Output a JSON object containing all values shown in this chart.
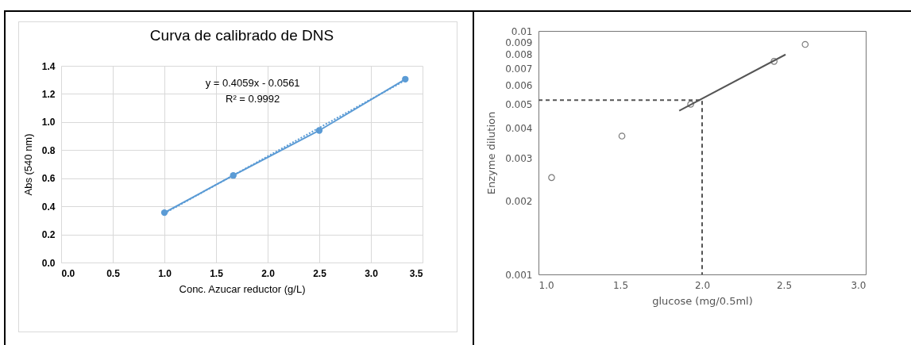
{
  "chart_data": [
    {
      "type": "line",
      "title": "Curva de calibrado de DNS",
      "xlabel": "Conc. Azucar reductor (g/L)",
      "ylabel": "Abs (540 nm)",
      "series": [
        {
          "x": [
            1.0,
            1.667,
            2.5,
            3.333
          ],
          "values": [
            0.355,
            0.62,
            0.94,
            1.305
          ],
          "color": "#5b9bd5",
          "marker": "circle",
          "line_style": "solid"
        },
        {
          "x": [
            1.0,
            3.333
          ],
          "values": [
            0.35,
            1.297
          ],
          "color": "#5b9bd5",
          "marker": "none",
          "line_style": "dotted"
        }
      ],
      "xlim": [
        0,
        3.5
      ],
      "ylim": [
        0,
        1.4
      ],
      "xticks": [
        {
          "value": 0,
          "label": "0.0"
        },
        0.5,
        {
          "value": 1,
          "label": "1.0"
        },
        1.5,
        {
          "value": 2,
          "label": "2.0"
        },
        2.5,
        {
          "value": 3,
          "label": "3.0"
        },
        3.5
      ],
      "yticks": [
        {
          "value": 0,
          "label": "0.0"
        },
        0.2,
        0.4,
        0.6,
        0.8,
        {
          "value": 1,
          "label": "1.0"
        },
        1.2,
        1.4
      ],
      "grid": true,
      "annotations": [
        "y = 0.4059x - 0.0561",
        "R² = 0.9992"
      ]
    },
    {
      "type": "scatter",
      "xlabel": "glucose (mg/0.5ml)",
      "ylabel": "Enzyme dilution",
      "series": [
        {
          "x": [
            1.08,
            1.51,
            1.93,
            2.44,
            2.63
          ],
          "values": [
            0.0025,
            0.0037,
            0.005,
            0.0075,
            0.0088
          ],
          "color": "#444444",
          "marker": "circle"
        },
        {
          "type": "line",
          "x": [
            1.86,
            2.51
          ],
          "values": [
            0.0047,
            0.008
          ],
          "color": "#555555",
          "marker": "none",
          "line_style": "solid"
        },
        {
          "type": "line",
          "x": [
            1.0,
            2.0,
            2.0
          ],
          "values": [
            0.0052,
            0.0052,
            0.001
          ],
          "color": "#555555",
          "marker": "none",
          "line_style": "dashed"
        }
      ],
      "xlim": [
        1.0,
        3.0
      ],
      "ylim": [
        0.001,
        0.01
      ],
      "log": "y",
      "xticks": [
        {
          "value": 1,
          "label": "1.0"
        },
        1.5,
        {
          "value": 2,
          "label": "2.0"
        },
        2.5,
        {
          "value": 3,
          "label": "3.0"
        }
      ],
      "yticks": [
        0.001,
        0.002,
        0.003,
        0.004,
        0.005,
        0.006,
        0.007,
        0.008,
        0.009,
        0.01
      ]
    }
  ]
}
